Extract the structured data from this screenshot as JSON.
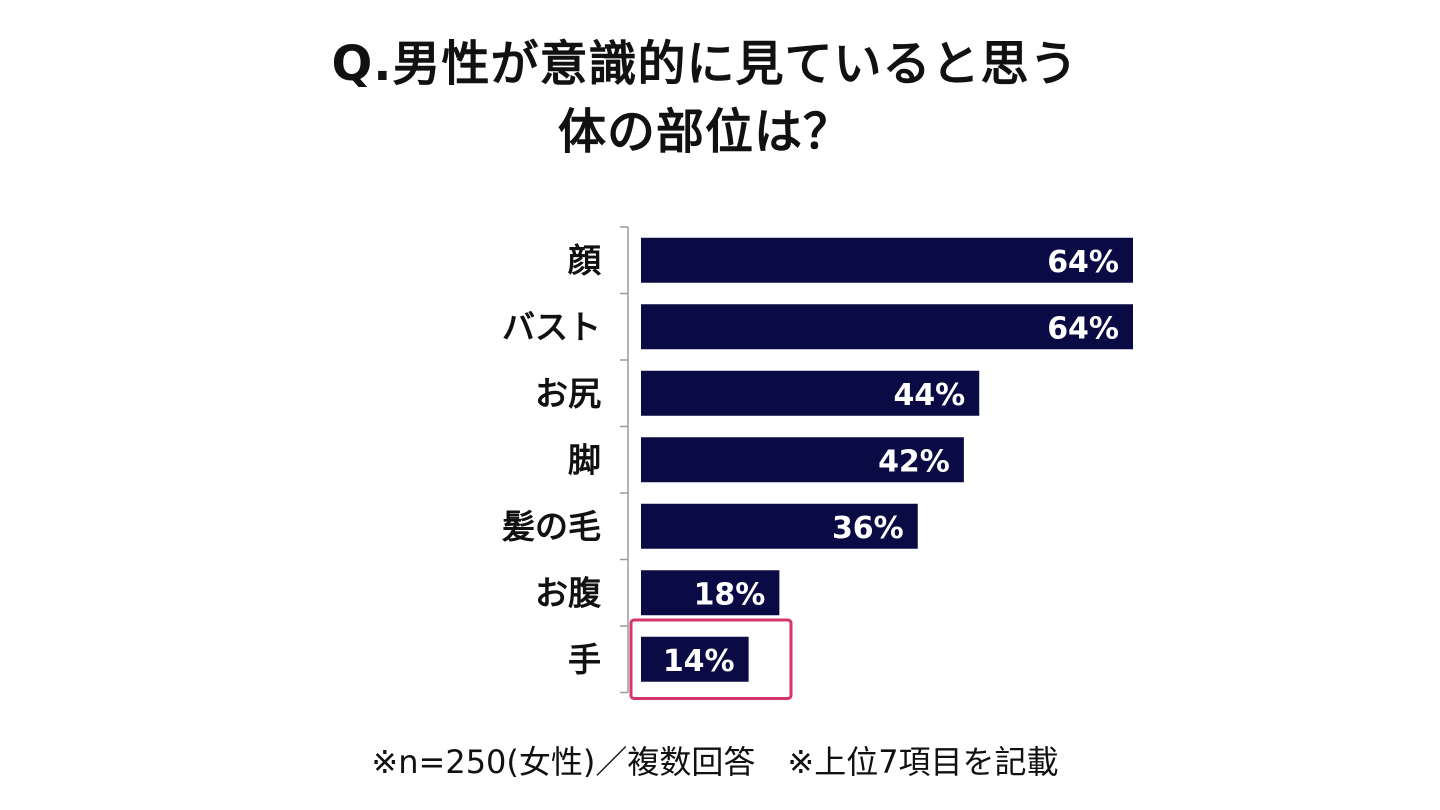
{
  "chart_data": {
    "type": "bar",
    "orientation": "horizontal",
    "title_lines": [
      "Q.男性が意識的に見ていると思う",
      "体の部位は？"
    ],
    "categories": [
      "顔",
      "バスト",
      "お尻",
      "脚",
      "髪の毛",
      "お腹",
      "手"
    ],
    "values": [
      64,
      64,
      44,
      42,
      36,
      18,
      14
    ],
    "value_labels": [
      "64%",
      "64%",
      "44%",
      "42%",
      "36%",
      "18%",
      "14%"
    ],
    "xlim": [
      0,
      64
    ],
    "highlighted_category": "手",
    "footnote": "※n=250(女性)／複数回答　※上位7項目を記載"
  },
  "colors": {
    "bar": "#0a0a45",
    "axis": "#9a9a9a",
    "highlight": "#d4366a",
    "text": "#111111",
    "value_text": "#ffffff"
  }
}
